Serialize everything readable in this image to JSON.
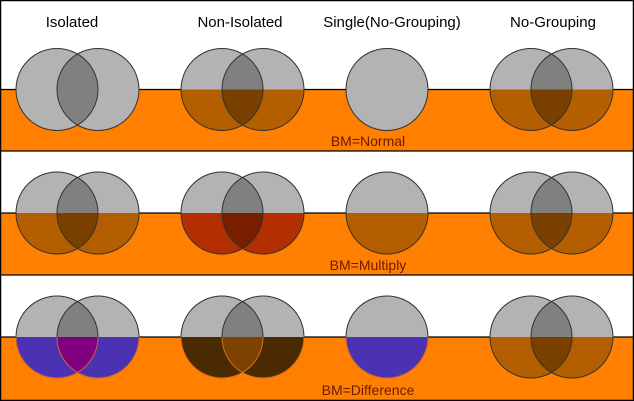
{
  "headers": [
    "Isolated",
    "Non-Isolated",
    "Single(No-Grouping)",
    "No-Grouping"
  ],
  "colors": {
    "background": "#ffffff",
    "backdrop": "#ff8000",
    "border": "#000000",
    "label": "#6a1a00",
    "circle_top": "#b3b3b3",
    "lens_top": "#808080"
  },
  "rows": [
    {
      "label": "BM=Normal",
      "groups": [
        {
          "type": "pair",
          "bottom": "#b3b3b3",
          "lens_bottom": "#808080",
          "bottom_stroke": "#333333"
        },
        {
          "type": "pair",
          "bottom": "#b35f00",
          "lens_bottom": "#7a4000",
          "bottom_stroke": "#333333"
        },
        {
          "type": "single",
          "bottom": "#b3b3b3",
          "bottom_stroke": "#333333"
        },
        {
          "type": "pair",
          "bottom": "#b35f00",
          "lens_bottom": "#7a4000",
          "bottom_stroke": "#333333"
        }
      ]
    },
    {
      "label": "BM=Multiply",
      "groups": [
        {
          "type": "pair",
          "bottom": "#b35f00",
          "lens_bottom": "#7a4000",
          "bottom_stroke": "#333333"
        },
        {
          "type": "pair",
          "bottom": "#b32e00",
          "lens_bottom": "#7a1e00",
          "bottom_stroke": "#333333"
        },
        {
          "type": "single",
          "bottom": "#b35f00",
          "bottom_stroke": "#333333"
        },
        {
          "type": "pair",
          "bottom": "#b35f00",
          "lens_bottom": "#7a4000",
          "bottom_stroke": "#333333"
        }
      ]
    },
    {
      "label": "BM=Difference",
      "groups": [
        {
          "type": "pair",
          "bottom": "#4b32b3",
          "lens_bottom": "#800080",
          "bottom_stroke": "#d0603a"
        },
        {
          "type": "pair",
          "bottom": "#4a2a00",
          "lens_bottom": "#7d4100",
          "bottom_stroke": "#d07020"
        },
        {
          "type": "single",
          "bottom": "#4b32b3",
          "bottom_stroke": "#d0603a"
        },
        {
          "type": "pair",
          "bottom": "#b35f00",
          "lens_bottom": "#7a4000",
          "bottom_stroke": "#333333"
        }
      ]
    }
  ]
}
